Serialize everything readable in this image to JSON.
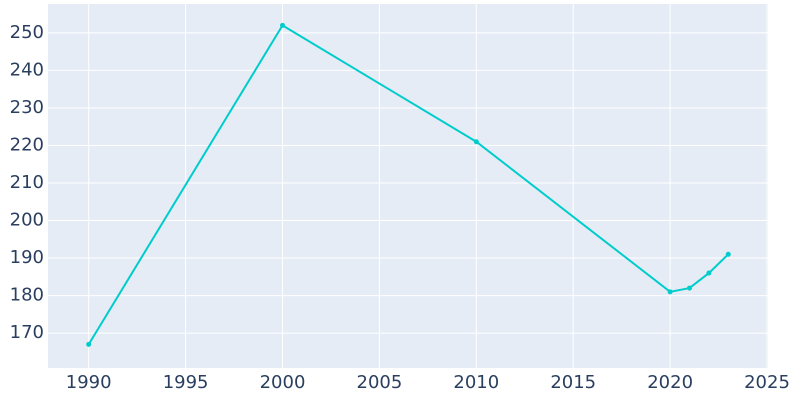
{
  "chart_data": {
    "type": "line",
    "x": [
      1990,
      2000,
      2010,
      2020,
      2021,
      2022,
      2023
    ],
    "series": [
      {
        "color": "#00cccc",
        "values": [
          167,
          252,
          221,
          181,
          182,
          186,
          191
        ]
      }
    ],
    "xlim": [
      1987.9,
      2025.05
    ],
    "xticks": [
      1990,
      1995,
      2000,
      2005,
      2010,
      2015,
      2020,
      2025
    ],
    "ylim": [
      160.7,
      257.7
    ],
    "yticks": [
      170,
      180,
      190,
      200,
      210,
      220,
      230,
      240,
      250
    ],
    "grid": true,
    "background": "#e5ecf6"
  }
}
